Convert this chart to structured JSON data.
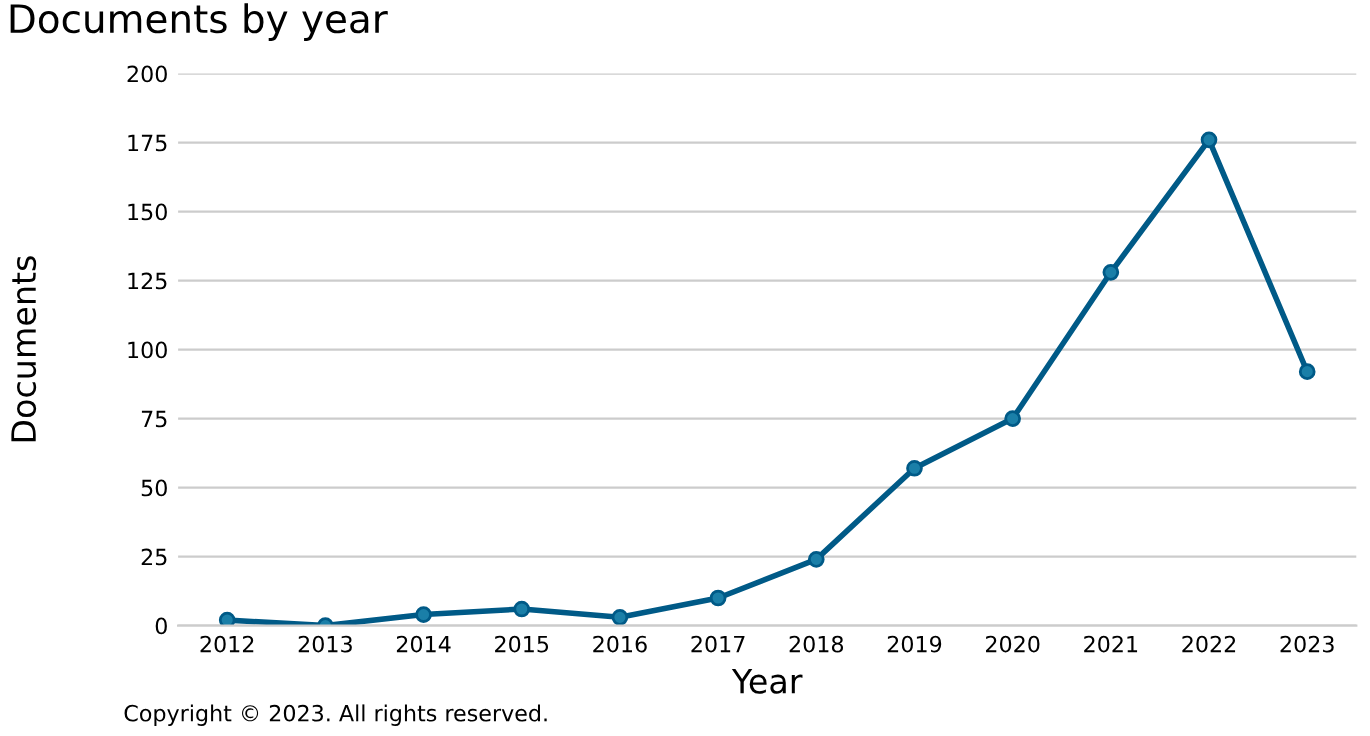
{
  "chart_data": {
    "type": "line",
    "title": "Documents by year",
    "xlabel": "Year",
    "ylabel": "Documents",
    "categories": [
      "2012",
      "2013",
      "2014",
      "2015",
      "2016",
      "2017",
      "2018",
      "2019",
      "2020",
      "2021",
      "2022",
      "2023"
    ],
    "series": [
      {
        "color": "#005a87",
        "values": [
          2,
          0,
          4,
          6,
          3,
          10,
          24,
          57,
          75,
          128,
          176,
          92
        ]
      }
    ],
    "ylim": [
      0,
      200
    ],
    "yticks": [
      0,
      25,
      50,
      75,
      100,
      125,
      150,
      175,
      200
    ],
    "grid": "y",
    "marker": "circle",
    "legend": false,
    "annotations": [
      "Copyright © 2023. All rights reserved."
    ]
  }
}
